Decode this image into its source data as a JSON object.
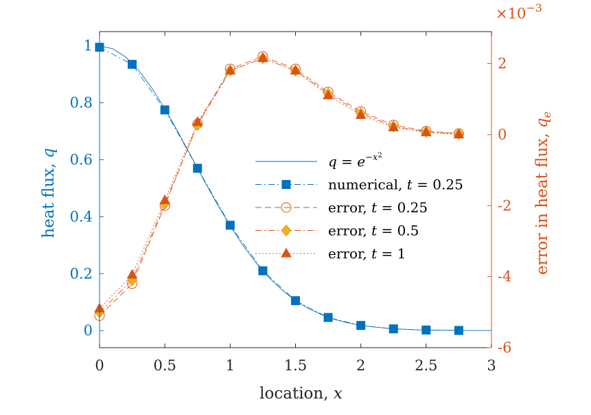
{
  "chart_data": {
    "type": "line",
    "title": "",
    "xlabel": "location, x",
    "ylabel": "heat flux, q",
    "ylabel_right": "error in heat flux, q_e",
    "right_axis_multiplier": "×10^-3",
    "xlim": [
      0,
      3
    ],
    "ylim": [
      -0.06,
      1.05
    ],
    "ylim_right": [
      -6,
      2.9
    ],
    "x_ticks": [
      "0",
      "0.5",
      "1",
      "1.5",
      "2",
      "2.5",
      "3"
    ],
    "y_ticks": [
      "0",
      "0.2",
      "0.4",
      "0.6",
      "0.8",
      "1"
    ],
    "y_ticks_right": [
      "-6",
      "-4",
      "-2",
      "0",
      "2"
    ],
    "colors": {
      "left": "#0072BD",
      "right": "#D95319",
      "diamond_fill": "#EDB120"
    },
    "legend_position": "center-right",
    "series": [
      {
        "name": "q = e^{-x^2}",
        "axis": "left",
        "marker": "none",
        "line": "solid",
        "x": [
          0,
          0.1,
          0.2,
          0.3,
          0.4,
          0.5,
          0.6,
          0.7,
          0.8,
          0.9,
          1.0,
          1.1,
          1.2,
          1.3,
          1.4,
          1.5,
          1.6,
          1.7,
          1.8,
          1.9,
          2.0,
          2.2,
          2.4,
          2.6,
          2.8,
          3.0
        ],
        "y": [
          1.0,
          0.99,
          0.961,
          0.914,
          0.852,
          0.779,
          0.698,
          0.613,
          0.527,
          0.445,
          0.368,
          0.298,
          0.237,
          0.185,
          0.141,
          0.105,
          0.077,
          0.056,
          0.039,
          0.027,
          0.018,
          0.008,
          0.003,
          0.001,
          0.0004,
          0.0001
        ]
      },
      {
        "name": "numerical, t = 0.25",
        "axis": "left",
        "marker": "square",
        "line": "dashdot",
        "x": [
          0,
          0.25,
          0.5,
          0.75,
          1.0,
          1.25,
          1.5,
          1.75,
          2.0,
          2.25,
          2.5,
          2.75
        ],
        "y": [
          0.995,
          0.935,
          0.775,
          0.57,
          0.37,
          0.21,
          0.105,
          0.046,
          0.018,
          0.006,
          0.002,
          0.0005
        ]
      },
      {
        "name": "error, t = 0.25",
        "axis": "right",
        "marker": "circle",
        "line": "dashed",
        "x": [
          0,
          0.25,
          0.5,
          0.75,
          1.0,
          1.25,
          1.5,
          1.75,
          2.0,
          2.25,
          2.5,
          2.75
        ],
        "y": [
          -5.1,
          -4.2,
          -2.0,
          0.3,
          1.85,
          2.2,
          1.85,
          1.2,
          0.65,
          0.27,
          0.1,
          0.03
        ]
      },
      {
        "name": "error, t = 0.5",
        "axis": "right",
        "marker": "diamond",
        "line": "dashdot",
        "x": [
          0,
          0.25,
          0.5,
          0.75,
          1.0,
          1.25,
          1.5,
          1.75,
          2.0,
          2.25,
          2.5,
          2.75
        ],
        "y": [
          -5.0,
          -4.1,
          -1.95,
          0.27,
          1.8,
          2.15,
          1.8,
          1.15,
          0.6,
          0.23,
          0.08,
          0.02
        ]
      },
      {
        "name": "error, t = 1",
        "axis": "right",
        "marker": "triangle",
        "line": "dotted",
        "x": [
          0,
          0.25,
          0.5,
          0.75,
          1.0,
          1.25,
          1.5,
          1.75,
          2.0,
          2.25,
          2.5,
          2.75
        ],
        "y": [
          -4.9,
          -3.95,
          -1.85,
          0.35,
          1.8,
          2.15,
          1.8,
          1.1,
          0.55,
          0.2,
          0.06,
          0.0
        ]
      }
    ]
  }
}
